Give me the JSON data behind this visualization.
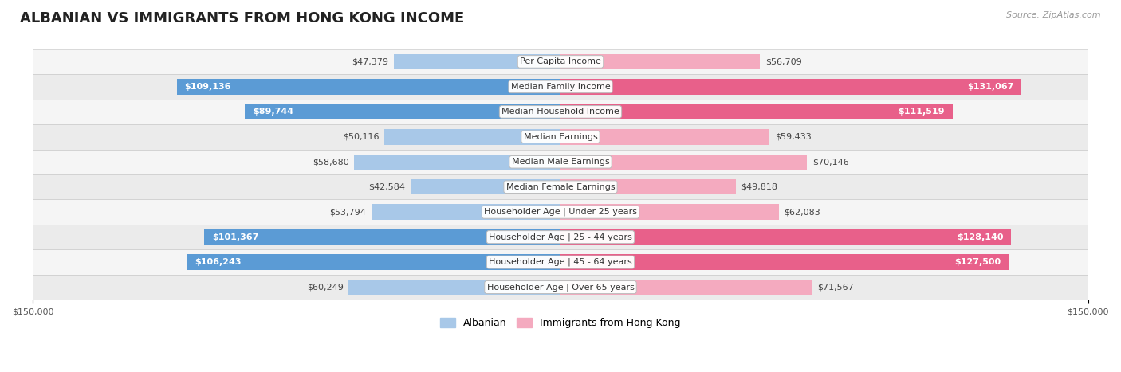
{
  "title": "ALBANIAN VS IMMIGRANTS FROM HONG KONG INCOME",
  "source": "Source: ZipAtlas.com",
  "categories": [
    "Per Capita Income",
    "Median Family Income",
    "Median Household Income",
    "Median Earnings",
    "Median Male Earnings",
    "Median Female Earnings",
    "Householder Age | Under 25 years",
    "Householder Age | 25 - 44 years",
    "Householder Age | 45 - 64 years",
    "Householder Age | Over 65 years"
  ],
  "albanian_values": [
    47379,
    109136,
    89744,
    50116,
    58680,
    42584,
    53794,
    101367,
    106243,
    60249
  ],
  "hk_values": [
    56709,
    131067,
    111519,
    59433,
    70146,
    49818,
    62083,
    128140,
    127500,
    71567
  ],
  "albanian_light": "#A8C8E8",
  "albanian_dark": "#5B9BD5",
  "hk_light": "#F4AABF",
  "hk_dark": "#E8608A",
  "shade_threshold": 85000,
  "row_bg_light": "#F2F2F2",
  "row_bg_dark": "#E8E8E8",
  "max_value": 150000,
  "title_fontsize": 13,
  "label_fontsize": 8,
  "value_fontsize": 8,
  "legend_fontsize": 9,
  "source_fontsize": 8
}
